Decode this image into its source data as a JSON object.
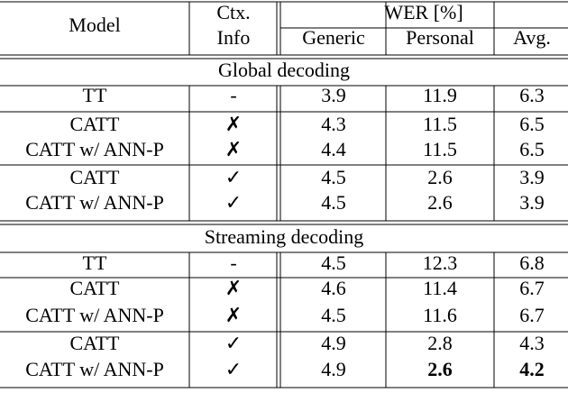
{
  "table": {
    "header": {
      "model": "Model",
      "context": [
        "Ctx.",
        "Info"
      ],
      "wer": "WER [%]",
      "wer_columns": [
        "Generic",
        "Personal",
        "Avg."
      ]
    },
    "sections": [
      {
        "title": "Global decoding",
        "rows": [
          [
            "TT",
            "-",
            "3.9",
            "11.9",
            "6.3"
          ],
          [
            "CATT",
            "✗",
            "4.3",
            "11.5",
            "6.5"
          ],
          [
            "CATT w/ ANN-P",
            "✗",
            "4.4",
            "11.5",
            "6.5"
          ],
          [
            "CATT",
            "✓",
            "4.5",
            "2.6",
            "3.9"
          ],
          [
            "CATT w/ ANN-P",
            "✓",
            "4.5",
            "2.6",
            "3.9"
          ]
        ]
      },
      {
        "title": "Streaming decoding",
        "rows": [
          [
            "TT",
            "-",
            "4.5",
            "12.3",
            "6.8"
          ],
          [
            "CATT",
            "✗",
            "4.6",
            "11.4",
            "6.7"
          ],
          [
            "CATT w/ ANN-P",
            "✗",
            "4.5",
            "11.6",
            "6.7"
          ],
          [
            "CATT",
            "✓",
            "4.9",
            "2.8",
            "4.3"
          ],
          [
            "CATT w/ ANN-P",
            "✓",
            "4.9",
            "2.6",
            "4.2"
          ]
        ]
      }
    ]
  }
}
